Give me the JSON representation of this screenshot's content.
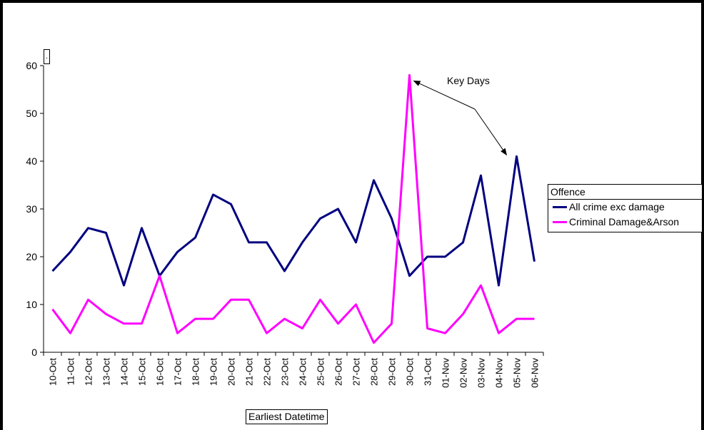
{
  "chart_data": {
    "type": "line",
    "categories": [
      "10-Oct",
      "11-Oct",
      "12-Oct",
      "13-Oct",
      "14-Oct",
      "15-Oct",
      "16-Oct",
      "17-Oct",
      "18-Oct",
      "19-Oct",
      "20-Oct",
      "21-Oct",
      "22-Oct",
      "23-Oct",
      "24-Oct",
      "25-Oct",
      "26-Oct",
      "27-Oct",
      "28-Oct",
      "29-Oct",
      "30-Oct",
      "31-Oct",
      "01-Nov",
      "02-Nov",
      "03-Nov",
      "04-Nov",
      "05-Nov",
      "06-Nov"
    ],
    "series": [
      {
        "name": "All crime exc damage",
        "color": "#000080",
        "values": [
          17,
          21,
          26,
          25,
          14,
          26,
          16,
          21,
          24,
          33,
          31,
          23,
          23,
          17,
          23,
          28,
          30,
          23,
          36,
          28,
          16,
          20,
          20,
          23,
          37,
          14,
          41,
          19
        ]
      },
      {
        "name": "Criminal Damage&Arson",
        "color": "#ff00ff",
        "values": [
          9,
          4,
          11,
          8,
          6,
          6,
          16,
          4,
          7,
          7,
          11,
          11,
          4,
          7,
          5,
          11,
          6,
          10,
          2,
          6,
          58,
          5,
          4,
          8,
          14,
          4,
          7,
          7
        ]
      }
    ],
    "yticks": [
      "0",
      "10",
      "20",
      "30",
      "40",
      "50",
      "60"
    ],
    "ylim": [
      0,
      60
    ],
    "xlabel": "Earliest Datetime",
    "ylabel": ".",
    "legend": {
      "title": "Offence",
      "placement": "right"
    },
    "annotation": "Key Days",
    "grid": false
  }
}
